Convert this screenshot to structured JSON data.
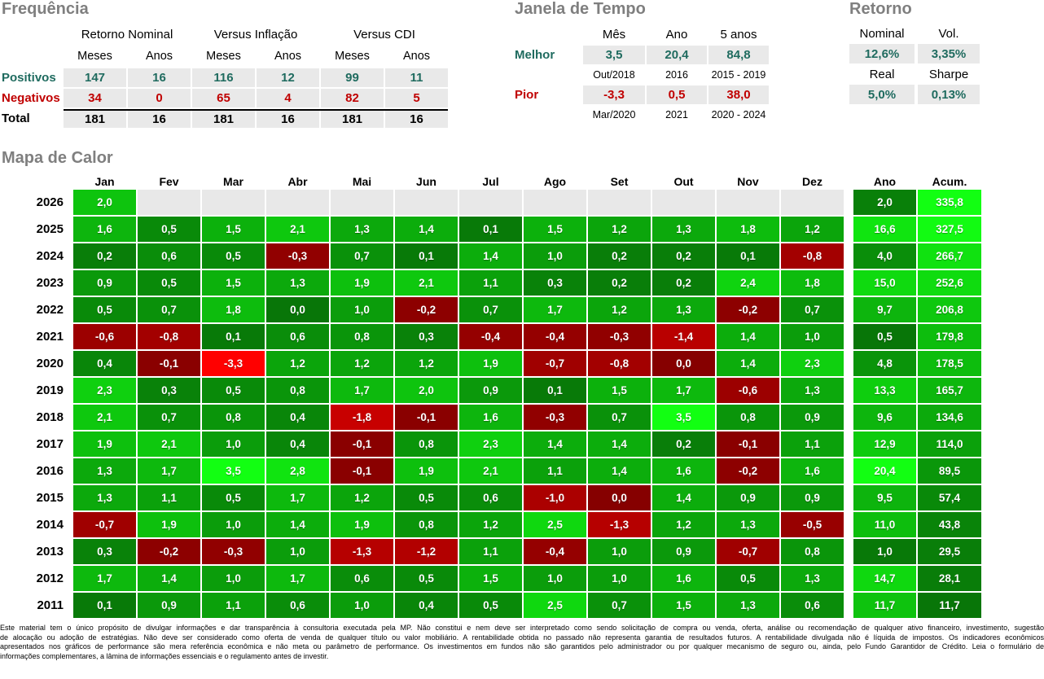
{
  "colors": {
    "section_title": "#7F7F7F",
    "positive_text": "#1F6B5F",
    "negative_text": "#C00000",
    "value_cell_bg": "#E9E9E9",
    "heat_empty": "#E8E8E8",
    "heat_positive_low": "#087608",
    "heat_positive_high": "#12FF12",
    "heat_negative_low": "#860000",
    "heat_negative_high": "#FF0000"
  },
  "chart_data": [
    {
      "type": "table",
      "name": "frequencia",
      "title": "Frequência",
      "column_groups": [
        "Retorno Nominal",
        "Versus Inflação",
        "Versus CDI"
      ],
      "columns": [
        "Meses",
        "Anos",
        "Meses",
        "Anos",
        "Meses",
        "Anos"
      ],
      "rows": [
        {
          "label": "Positivos",
          "style": "pos",
          "values": [
            "147",
            "16",
            "116",
            "12",
            "99",
            "11"
          ]
        },
        {
          "label": "Negativos",
          "style": "neg",
          "values": [
            "34",
            "0",
            "65",
            "4",
            "82",
            "5"
          ]
        },
        {
          "label": "Total",
          "style": "tot",
          "values": [
            "181",
            "16",
            "181",
            "16",
            "181",
            "16"
          ]
        }
      ]
    },
    {
      "type": "table",
      "name": "janela_de_tempo",
      "title": "Janela de Tempo",
      "columns": [
        "Mês",
        "Ano",
        "5 anos"
      ],
      "rows": [
        {
          "label": "Melhor",
          "style": "pos",
          "values": [
            "3,5",
            "20,4",
            "84,8"
          ],
          "periods": [
            "Out/2018",
            "2016",
            "2015 - 2019"
          ]
        },
        {
          "label": "Pior",
          "style": "neg",
          "values": [
            "-3,3",
            "0,5",
            "38,0"
          ],
          "periods": [
            "Mar/2020",
            "2021",
            "2020 - 2024"
          ]
        }
      ]
    },
    {
      "type": "table",
      "name": "retorno",
      "title": "Retorno",
      "rows": [
        {
          "labels": [
            "Nominal",
            "Vol."
          ],
          "values": [
            "12,6%",
            "3,35%"
          ]
        },
        {
          "labels": [
            "Real",
            "Sharpe"
          ],
          "values": [
            "5,0%",
            "0,13%"
          ]
        }
      ]
    },
    {
      "type": "heatmap",
      "name": "mapa_de_calor",
      "title": "Mapa de Calor",
      "month_headers": [
        "Jan",
        "Fev",
        "Mar",
        "Abr",
        "Mai",
        "Jun",
        "Jul",
        "Ago",
        "Set",
        "Out",
        "Nov",
        "Dez"
      ],
      "extra_headers": [
        "Ano",
        "Acum."
      ],
      "rows": [
        {
          "year": "2026",
          "months": [
            2.0,
            null,
            null,
            null,
            null,
            null,
            null,
            null,
            null,
            null,
            null,
            null
          ],
          "ano": 2.0,
          "acum": 335.8
        },
        {
          "year": "2025",
          "months": [
            1.6,
            0.5,
            1.5,
            2.1,
            1.3,
            1.4,
            0.1,
            1.5,
            1.2,
            1.3,
            1.8,
            1.2
          ],
          "ano": 16.6,
          "acum": 327.5
        },
        {
          "year": "2024",
          "months": [
            0.2,
            0.6,
            0.5,
            -0.3,
            0.7,
            0.1,
            1.4,
            1.0,
            0.2,
            0.2,
            0.1,
            -0.8
          ],
          "ano": 4.0,
          "acum": 266.7
        },
        {
          "year": "2023",
          "months": [
            0.9,
            0.5,
            1.5,
            1.3,
            1.9,
            2.1,
            1.1,
            0.3,
            0.2,
            0.2,
            2.4,
            1.8
          ],
          "ano": 15.0,
          "acum": 252.6
        },
        {
          "year": "2022",
          "months": [
            0.5,
            0.7,
            1.8,
            0.0,
            1.0,
            -0.2,
            0.7,
            1.7,
            1.2,
            1.3,
            -0.2,
            0.7
          ],
          "ano": 9.7,
          "acum": 206.8
        },
        {
          "year": "2021",
          "months": [
            -0.6,
            -0.8,
            0.1,
            0.6,
            0.8,
            0.3,
            -0.4,
            -0.4,
            -0.3,
            -1.4,
            1.4,
            1.0
          ],
          "ano": 0.5,
          "acum": 179.8
        },
        {
          "year": "2020",
          "months": [
            0.4,
            -0.1,
            -3.3,
            1.2,
            1.2,
            1.2,
            1.9,
            -0.7,
            -0.8,
            0.0,
            1.4,
            2.3
          ],
          "ano": 4.8,
          "acum": 178.5
        },
        {
          "year": "2019",
          "months": [
            2.3,
            0.3,
            0.5,
            0.8,
            1.7,
            2.0,
            0.9,
            0.1,
            1.5,
            1.7,
            -0.6,
            1.3
          ],
          "ano": 13.3,
          "acum": 165.7
        },
        {
          "year": "2018",
          "months": [
            2.1,
            0.7,
            0.8,
            0.4,
            -1.8,
            -0.1,
            1.6,
            -0.3,
            0.7,
            3.5,
            0.8,
            0.9
          ],
          "ano": 9.6,
          "acum": 134.6
        },
        {
          "year": "2017",
          "months": [
            1.9,
            2.1,
            1.0,
            0.4,
            -0.1,
            0.8,
            2.3,
            1.4,
            1.4,
            0.2,
            -0.1,
            1.1
          ],
          "ano": 12.9,
          "acum": 114.0
        },
        {
          "year": "2016",
          "months": [
            1.3,
            1.7,
            3.5,
            2.8,
            -0.1,
            1.9,
            2.1,
            1.1,
            1.4,
            1.6,
            -0.2,
            1.6
          ],
          "ano": 20.4,
          "acum": 89.5
        },
        {
          "year": "2015",
          "months": [
            1.3,
            1.1,
            0.5,
            1.7,
            1.2,
            0.5,
            0.6,
            -1.0,
            0.0,
            1.4,
            0.9,
            0.9
          ],
          "ano": 9.5,
          "acum": 57.4
        },
        {
          "year": "2014",
          "months": [
            -0.7,
            1.9,
            1.0,
            1.4,
            1.9,
            0.8,
            1.2,
            2.5,
            -1.3,
            1.2,
            1.3,
            -0.5
          ],
          "ano": 11.0,
          "acum": 43.8
        },
        {
          "year": "2013",
          "months": [
            0.3,
            -0.2,
            -0.3,
            1.0,
            -1.3,
            -1.2,
            1.1,
            -0.4,
            1.0,
            0.9,
            -0.7,
            0.8
          ],
          "ano": 1.0,
          "acum": 29.5
        },
        {
          "year": "2012",
          "months": [
            1.7,
            1.4,
            1.0,
            1.7,
            0.6,
            0.5,
            1.5,
            1.0,
            1.0,
            1.6,
            0.5,
            1.3
          ],
          "ano": 14.7,
          "acum": 28.1
        },
        {
          "year": "2011",
          "months": [
            0.1,
            0.9,
            1.1,
            0.6,
            1.0,
            0.4,
            0.5,
            2.5,
            0.7,
            1.5,
            1.3,
            0.6
          ],
          "ano": 11.7,
          "acum": 11.7
        }
      ],
      "red_zero_cells": [
        {
          "year": "2020",
          "month": "Out"
        },
        {
          "year": "2015",
          "month": "Set"
        }
      ],
      "color_scale": {
        "month_pos_max": 3.5,
        "month_neg_max_abs": 3.3,
        "ano_range": [
          0.5,
          20.4
        ],
        "acum_range": [
          11.7,
          335.8
        ]
      }
    }
  ],
  "disclaimer": {
    "lines": [
      "Este material tem o único propósito de divulgar informações e dar transparência à consultoria executada pela MP. Não constitui e nem deve ser interpretado como sendo solicitação de compra ou venda, oferta, análise ou recomendação de qualquer ativo financeiro, investimento, sugestão",
      "de alocação ou adoção de estratégias. Não deve ser considerado como oferta de venda de qualquer título ou valor mobiliário. A rentabilidade obtida no passado não representa garantia de resultados futuros. A rentabilidade divulgada não é líquida de impostos. Os indicadores econômicos",
      "apresentados nos gráficos de performance são mera referência econômica e não meta ou parâmetro de performance. Os investimentos em fundos não são garantidos pelo administrador ou por qualquer mecanismo de seguro ou, ainda, pelo Fundo Garantidor de Crédito. Leia o formulário de",
      "informações complementares, a lâmina de informações essenciais e o regulamento antes de investir."
    ]
  }
}
